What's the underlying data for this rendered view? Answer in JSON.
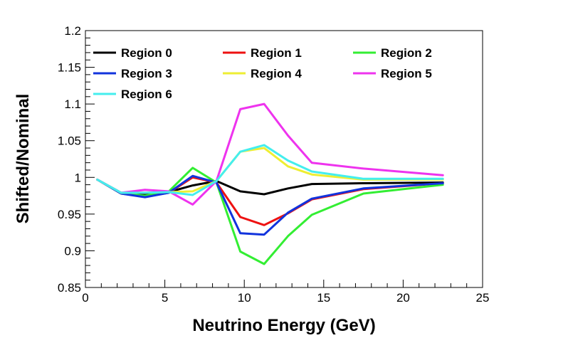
{
  "chart_data": {
    "type": "line",
    "title": "",
    "xlabel": "Neutrino Energy (GeV)",
    "ylabel": "Shifted/Nominal",
    "xlim": [
      0,
      25
    ],
    "ylim": [
      0.85,
      1.2
    ],
    "xticks": [
      0,
      5,
      10,
      15,
      20,
      25
    ],
    "xtick_labels": [
      "0",
      "5",
      "10",
      "15",
      "20",
      "25"
    ],
    "yticks": [
      0.85,
      0.9,
      0.95,
      1.0,
      1.05,
      1.1,
      1.15,
      1.2
    ],
    "ytick_labels": [
      "0.85",
      "0.9",
      "0.95",
      "1",
      "1.05",
      "1.1",
      "1.15",
      "1.2"
    ],
    "legend_position": "top-left",
    "x": [
      0.75,
      2.25,
      3.75,
      5.25,
      6.75,
      8.25,
      9.75,
      11.25,
      12.75,
      14.25,
      17.5,
      22.5
    ],
    "series": [
      {
        "name": "Region 0",
        "color": "#000000",
        "values": [
          0.997,
          0.979,
          0.976,
          0.98,
          0.989,
          0.995,
          0.981,
          0.977,
          0.985,
          0.991,
          0.992,
          0.993
        ]
      },
      {
        "name": "Region 1",
        "color": "#ee1111",
        "values": [
          0.997,
          0.978,
          0.974,
          0.979,
          1.0,
          0.993,
          0.946,
          0.935,
          0.951,
          0.97,
          0.984,
          0.992
        ]
      },
      {
        "name": "Region 2",
        "color": "#33ee33",
        "values": [
          0.997,
          0.978,
          0.975,
          0.981,
          1.013,
          0.993,
          0.899,
          0.882,
          0.92,
          0.949,
          0.978,
          0.99
        ]
      },
      {
        "name": "Region 3",
        "color": "#1133dd",
        "values": [
          0.997,
          0.978,
          0.973,
          0.979,
          1.002,
          0.993,
          0.924,
          0.922,
          0.952,
          0.971,
          0.985,
          0.992
        ]
      },
      {
        "name": "Region 4",
        "color": "#eeee33",
        "values": [
          0.997,
          0.979,
          0.979,
          0.98,
          0.981,
          0.995,
          1.035,
          1.04,
          1.015,
          1.004,
          0.997,
          0.997
        ]
      },
      {
        "name": "Region 5",
        "color": "#ee33ee",
        "values": [
          0.997,
          0.979,
          0.983,
          0.981,
          0.963,
          0.995,
          1.093,
          1.1,
          1.057,
          1.02,
          1.012,
          1.003
        ]
      },
      {
        "name": "Region 6",
        "color": "#44eeee",
        "values": [
          0.997,
          0.979,
          0.979,
          0.98,
          0.976,
          0.995,
          1.035,
          1.044,
          1.023,
          1.008,
          0.998,
          0.998
        ]
      }
    ]
  }
}
